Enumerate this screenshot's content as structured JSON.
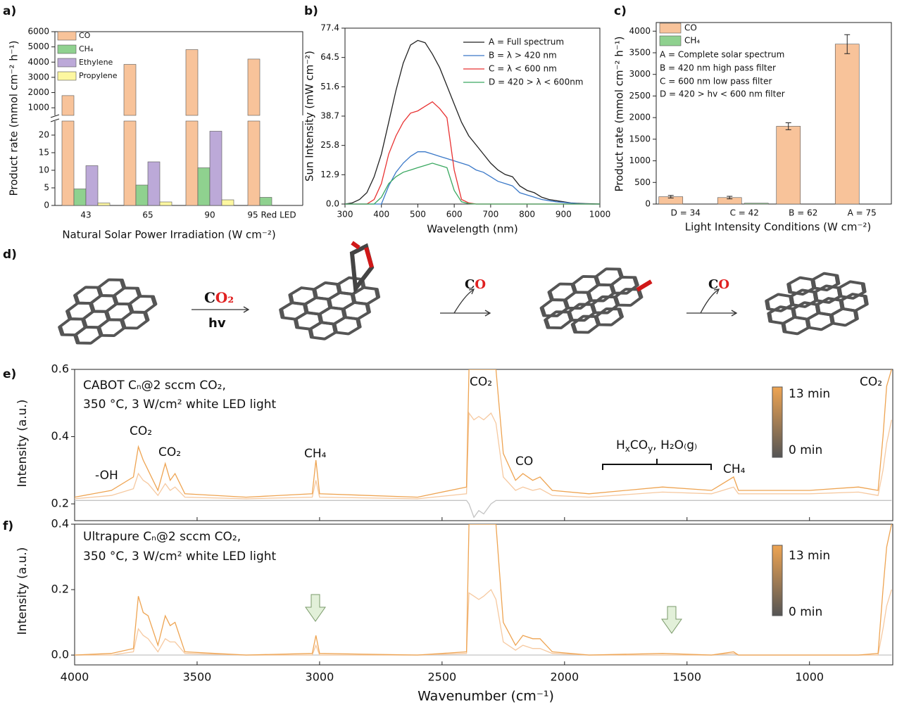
{
  "chart_data": [
    {
      "type": "broken_bar",
      "panel_label": "a)",
      "ylabel": "Product rate (mmol cm⁻² h⁻¹)",
      "xlabel": "Natural Solar Power Irradiation (W cm⁻²)",
      "categories": [
        "43",
        "65",
        "90",
        "95 Red LED"
      ],
      "series": [
        {
          "name": "CO",
          "color": "#f8c39a",
          "values": [
            1800,
            3850,
            4820,
            4200
          ]
        },
        {
          "name": "CH₄",
          "color": "#8fd18f",
          "values": [
            4.7,
            5.8,
            10.7,
            2.3
          ]
        },
        {
          "name": "Ethylene",
          "color": "#bca9d8",
          "values": [
            11.3,
            12.4,
            21.1,
            null
          ]
        },
        {
          "name": "Propylene",
          "color": "#fdf7a0",
          "values": [
            0.7,
            1.0,
            1.6,
            null
          ]
        }
      ],
      "ylim": [
        0,
        24
      ],
      "yticks": [
        0,
        5,
        10,
        15,
        20
      ],
      "ylim_upper": [
        500,
        6000
      ],
      "yticks_upper": [
        1000,
        2000,
        3000,
        4000,
        5000,
        6000
      ]
    },
    {
      "type": "line",
      "panel_label": "b)",
      "ylabel": "Sun Intensity (mW cm⁻²)",
      "xlabel": "Wavelength (nm)",
      "x": [
        300,
        320,
        340,
        360,
        380,
        400,
        420,
        440,
        460,
        480,
        500,
        520,
        540,
        560,
        580,
        600,
        620,
        640,
        660,
        680,
        700,
        720,
        740,
        760,
        780,
        800,
        820,
        840,
        860,
        880,
        900,
        920,
        940,
        960,
        980,
        1000
      ],
      "series": [
        {
          "name": "A = Full spectrum",
          "color": "#222222",
          "values": [
            0,
            0.5,
            2,
            5,
            12,
            22,
            36,
            50,
            62,
            70,
            72,
            71,
            66,
            60,
            52,
            44,
            36,
            30,
            26,
            22,
            18,
            15,
            13,
            12,
            8,
            6,
            5,
            3,
            2,
            1.5,
            1,
            0.5,
            0.3,
            0.2,
            0.1,
            0
          ]
        },
        {
          "name": "B = λ > 420 nm",
          "color": "#3a78c8",
          "values": [
            0,
            0,
            0,
            0,
            0,
            0,
            8,
            14,
            18,
            21,
            23,
            23,
            22,
            21,
            20,
            19,
            18,
            17,
            15,
            14,
            12,
            10,
            9,
            8,
            5,
            4,
            3,
            2,
            1.5,
            1,
            0.7,
            0.4,
            0.2,
            0.1,
            0,
            0
          ]
        },
        {
          "name": "C = λ < 600 nm",
          "color": "#e83232",
          "values": [
            0,
            0,
            0,
            0,
            2,
            9,
            22,
            30,
            36,
            40,
            41,
            43,
            45,
            42,
            38,
            15,
            2,
            0.5,
            0,
            0,
            0,
            0,
            0,
            0,
            0,
            0,
            0,
            0,
            0,
            0,
            0,
            0,
            0,
            0,
            0,
            0
          ]
        },
        {
          "name": "D = 420 > λ < 600nm",
          "color": "#3aa860",
          "values": [
            0,
            0,
            0,
            0,
            0,
            3,
            9,
            12,
            14,
            15,
            16,
            17,
            18,
            17,
            16,
            6,
            1,
            0.2,
            0,
            0,
            0,
            0,
            0,
            0,
            0,
            0,
            0,
            0,
            0,
            0,
            0,
            0,
            0,
            0,
            0,
            0
          ]
        }
      ],
      "xlim": [
        300,
        1000
      ],
      "xticks": [
        300,
        400,
        500,
        600,
        700,
        800,
        900,
        1000
      ],
      "ylim": [
        0,
        77.4
      ],
      "yticks": [
        {
          "value": 0,
          "label": "0.0"
        },
        12.9,
        25.8,
        38.7,
        51.6,
        64.5,
        77.4
      ]
    },
    {
      "type": "bar",
      "panel_label": "c)",
      "ylabel": "Product rate (mmol cm⁻² h⁻¹)",
      "xlabel": "Light Intensity Conditions (W cm⁻²)",
      "categories": [
        "D = 34",
        "C = 42",
        "B = 62",
        "A = 75"
      ],
      "series": [
        {
          "name": "CO",
          "color": "#f8c39a",
          "values": [
            170,
            150,
            1800,
            3700
          ],
          "errors": [
            30,
            30,
            80,
            220
          ]
        },
        {
          "name": "CH₄",
          "color": "#8fd18f",
          "values": [
            null,
            20,
            null,
            null
          ]
        }
      ],
      "annotations": [
        "A = Complete solar spectrum",
        "B = 420 nm high pass filter",
        "C = 600 nm low pass filter",
        "D = 420 > hv < 600 nm filter"
      ],
      "ylim": [
        0,
        4200
      ],
      "yticks": [
        0,
        500,
        1000,
        1500,
        2000,
        2500,
        3000,
        3500,
        4000
      ]
    },
    {
      "type": "line",
      "panel_label": "e)",
      "ylabel": "Intensity (a.u.)",
      "annotations": [
        "CABOT Cₙ@2 sccm CO₂,",
        "350 °C, 3 W/cm² white LED light",
        "-OH",
        "CO₂",
        "CO₂",
        "CH₄",
        "CO₂",
        "CO",
        "CH₄",
        "CO₂"
      ],
      "species": [
        "H",
        "x",
        "CO",
        "y",
        ", H₂O₍g₎"
      ],
      "colorbar": [
        "13 min",
        "0 min"
      ],
      "x": [
        4000,
        3850,
        3760,
        3740,
        3720,
        3700,
        3660,
        3630,
        3610,
        3590,
        3550,
        3300,
        3030,
        3015,
        3000,
        2600,
        2400,
        2390,
        2370,
        2350,
        2330,
        2300,
        2280,
        2250,
        2200,
        2170,
        2130,
        2100,
        2050,
        1900,
        1600,
        1400,
        1310,
        1290,
        1000,
        800,
        720,
        700,
        685,
        665
      ],
      "series": [
        {
          "color": "#c4c4c4",
          "values": [
            0.21,
            0.21,
            0.21,
            0.21,
            0.21,
            0.21,
            0.21,
            0.21,
            0.21,
            0.21,
            0.21,
            0.21,
            0.21,
            0.21,
            0.21,
            0.21,
            0.21,
            0.2,
            0.16,
            0.18,
            0.17,
            0.2,
            0.21,
            0.21,
            0.21,
            0.21,
            0.21,
            0.21,
            0.21,
            0.21,
            0.21,
            0.21,
            0.21,
            0.21,
            0.21,
            0.21,
            0.21,
            0.21,
            0.21,
            0.21
          ]
        },
        {
          "color": "#f6c9a0",
          "values": [
            0.215,
            0.225,
            0.245,
            0.29,
            0.27,
            0.26,
            0.225,
            0.26,
            0.24,
            0.25,
            0.22,
            0.215,
            0.22,
            0.27,
            0.22,
            0.215,
            0.23,
            0.47,
            0.45,
            0.46,
            0.45,
            0.47,
            0.44,
            0.28,
            0.24,
            0.25,
            0.24,
            0.245,
            0.225,
            0.22,
            0.235,
            0.23,
            0.25,
            0.23,
            0.23,
            0.235,
            0.225,
            0.3,
            0.38,
            0.45
          ]
        },
        {
          "color": "#eea452",
          "values": [
            0.22,
            0.24,
            0.28,
            0.37,
            0.33,
            0.3,
            0.24,
            0.32,
            0.27,
            0.29,
            0.23,
            0.22,
            0.23,
            0.33,
            0.23,
            0.22,
            0.25,
            0.6,
            0.6,
            0.6,
            0.6,
            0.6,
            0.6,
            0.35,
            0.27,
            0.29,
            0.27,
            0.28,
            0.24,
            0.23,
            0.25,
            0.24,
            0.28,
            0.24,
            0.24,
            0.25,
            0.24,
            0.4,
            0.55,
            0.6
          ]
        }
      ],
      "xlim": [
        4000,
        660
      ],
      "ylim": [
        0.15,
        0.6
      ],
      "yticks": [
        0.2,
        0.4,
        0.6
      ]
    },
    {
      "type": "line",
      "panel_label": "f)",
      "ylabel": "Intensity (a.u.)",
      "xlabel": "Wavenumber (cm⁻¹)",
      "annotations": [
        "Ultrapure Cₙ@2 sccm CO₂,",
        "350 °C, 3 W/cm² white LED light"
      ],
      "colorbar": [
        "13 min",
        "0 min"
      ],
      "x": [
        4000,
        3850,
        3760,
        3740,
        3720,
        3700,
        3660,
        3630,
        3610,
        3590,
        3550,
        3300,
        3030,
        3015,
        3000,
        2600,
        2400,
        2390,
        2370,
        2350,
        2330,
        2300,
        2280,
        2250,
        2200,
        2170,
        2130,
        2100,
        2050,
        1900,
        1600,
        1400,
        1310,
        1290,
        1000,
        800,
        720,
        700,
        685,
        665
      ],
      "series": [
        {
          "color": "#c4c4c4",
          "values": [
            0,
            0,
            0,
            0,
            0,
            0,
            0,
            0,
            0,
            0,
            0,
            0,
            0,
            0,
            0,
            0,
            0,
            0,
            0,
            0,
            0,
            0,
            0,
            0,
            0,
            0,
            0,
            0,
            0,
            0,
            0,
            0,
            0,
            0,
            0,
            0,
            0,
            0,
            0,
            0
          ]
        },
        {
          "color": "#f6c9a0",
          "values": [
            0,
            0,
            0.01,
            0.08,
            0.06,
            0.05,
            0.01,
            0.05,
            0.04,
            0.04,
            0.005,
            0,
            0,
            0.03,
            0,
            0,
            0.005,
            0.19,
            0.18,
            0.17,
            0.18,
            0.2,
            0.17,
            0.04,
            0.015,
            0.03,
            0.02,
            0.02,
            0.005,
            0,
            0,
            0,
            0.005,
            0,
            0,
            0,
            0,
            0.08,
            0.15,
            0.2
          ]
        },
        {
          "color": "#eea452",
          "values": [
            0,
            0.005,
            0.02,
            0.18,
            0.13,
            0.12,
            0.03,
            0.12,
            0.09,
            0.1,
            0.01,
            0,
            0.005,
            0.06,
            0.005,
            0,
            0.01,
            0.4,
            0.4,
            0.4,
            0.4,
            0.4,
            0.4,
            0.1,
            0.03,
            0.06,
            0.05,
            0.05,
            0.01,
            0,
            0.005,
            0,
            0.01,
            0,
            0,
            0,
            0.005,
            0.2,
            0.33,
            0.4
          ]
        }
      ],
      "xlim": [
        4000,
        660
      ],
      "xticks": [
        4000,
        3500,
        3000,
        2500,
        2000,
        1500,
        1000
      ],
      "ylim": [
        -0.03,
        0.4
      ],
      "yticks": [
        {
          "value": 0,
          "label": "0.0"
        },
        0.2,
        0.4
      ]
    }
  ],
  "diagram": {
    "panel_label": "d)",
    "reagent": [
      "C",
      "O₂"
    ],
    "condition": "hv",
    "product_1": [
      "C",
      "O"
    ],
    "product_2": [
      "C",
      "O"
    ]
  }
}
